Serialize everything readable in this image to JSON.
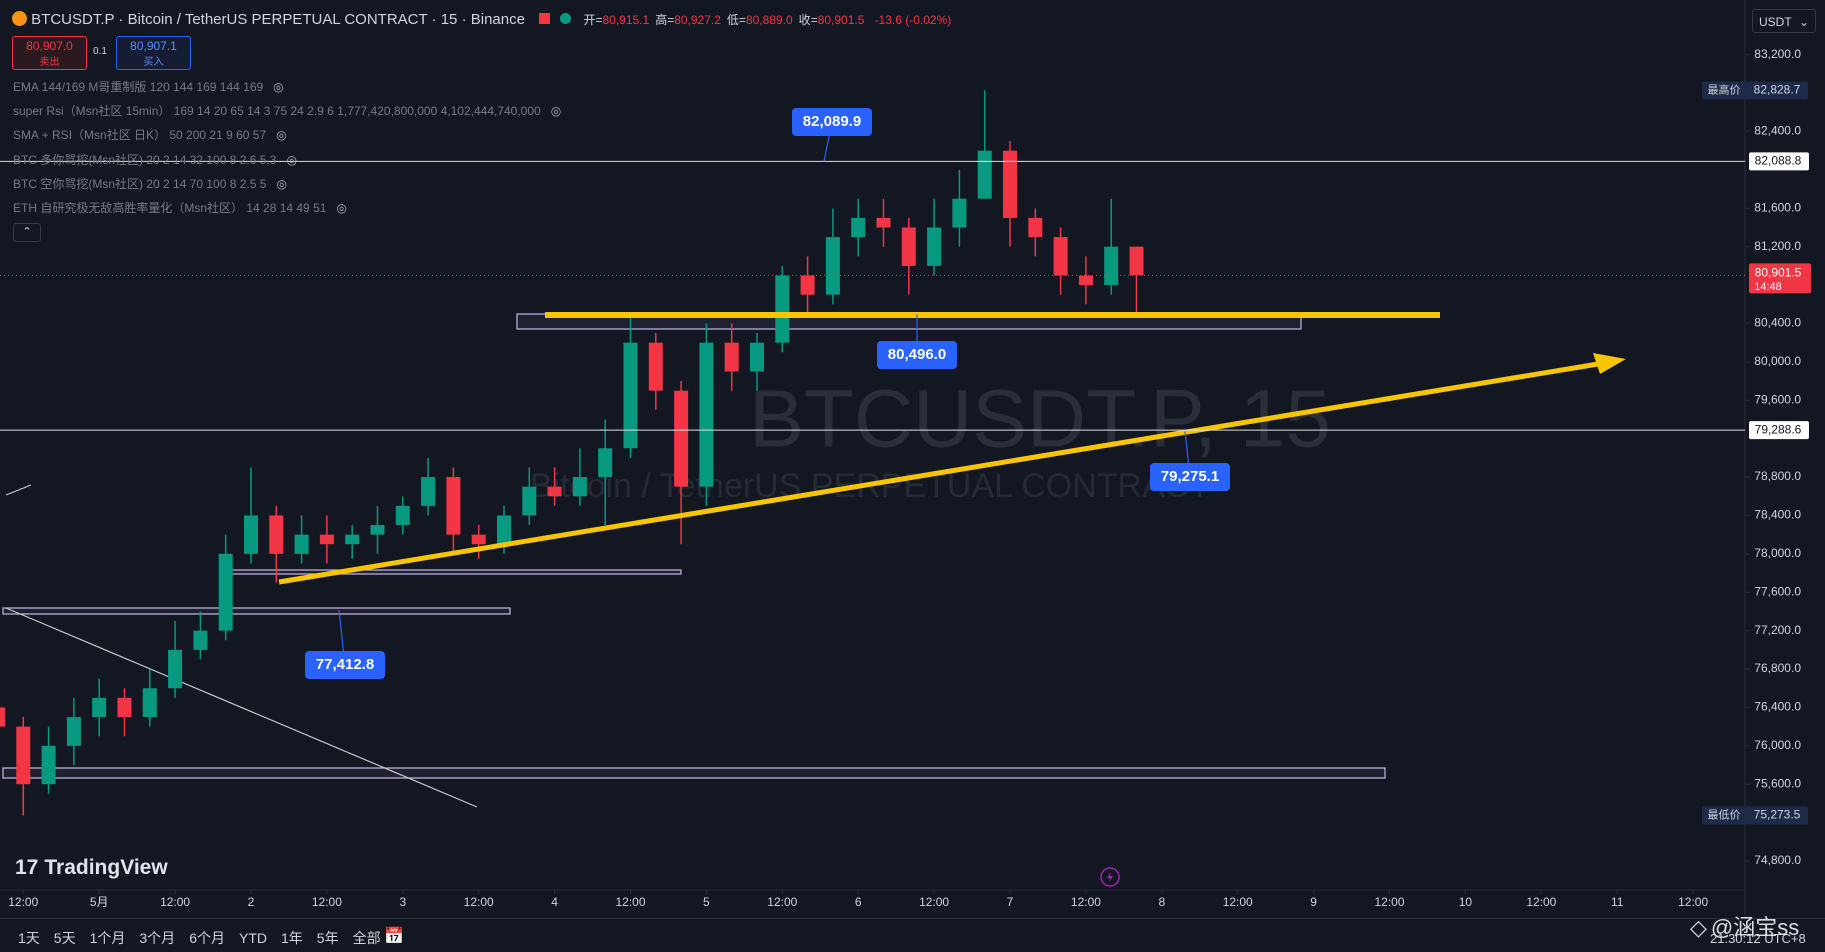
{
  "header": {
    "symbol": "BTCUSDT.P · Bitcoin / TetherUS PERPETUAL CONTRACT · 15 · Binance",
    "ohlc": [
      {
        "label": "开=",
        "value": "80,915.1"
      },
      {
        "label": "高=",
        "value": "80,927.2"
      },
      {
        "label": "低=",
        "value": "80,889.0"
      },
      {
        "label": "收=",
        "value": "80,901.5"
      }
    ],
    "change": "-13.6 (-0.02%)"
  },
  "trade": {
    "sell_price": "80,907.0",
    "sell_label": "卖出",
    "qty": "0.1",
    "buy_price": "80,907.1",
    "buy_label": "买入"
  },
  "indicators": [
    "EMA 144/169 M哥重制版 120 144 169 144 169",
    "super Rsi（Msn社区 15min） 169 14 20 65 14 3 75 24 2.9 6 1,777,420,800,000 4,102,444,740,000",
    "SMA + RSI（Msn社区 日K） 50 200 21 9 60 57",
    "BTC 多你骂挖(Msn社区) 20 2 14 32 100 8 2.6 5.3",
    "BTC 空你骂挖(Msn社区) 20 2 14 70 100 8 2.5 5",
    "ETH 自研究极无敌高胜率量化（Msn社区） 14 28 14 49 51"
  ],
  "currency": "USDT",
  "watermark": {
    "symbol": "BTCUSDT.P, 15",
    "name": "Bitcoin / TetherUS PERPETUAL CONTRACT"
  },
  "chart_data": {
    "type": "candlestick",
    "x": [
      -4,
      0,
      4,
      8,
      12,
      16,
      20,
      24,
      28,
      32,
      36,
      40,
      44,
      48,
      52,
      56,
      60,
      64,
      68,
      72,
      76,
      80,
      84,
      88,
      92,
      96,
      100,
      104,
      108,
      112,
      116,
      120,
      124,
      128,
      132,
      136,
      140,
      144,
      148,
      152,
      156,
      160,
      164,
      168,
      172,
      176
    ],
    "open": [
      76400,
      76200,
      75600,
      76000,
      76300,
      76500,
      76300,
      76600,
      77000,
      77200,
      78000,
      78400,
      78000,
      78200,
      78100,
      78200,
      78300,
      78500,
      78800,
      78200,
      78100,
      78400,
      78700,
      78600,
      78800,
      79100,
      80200,
      79700,
      78700,
      80200,
      79900,
      80200,
      80900,
      80700,
      81300,
      81500,
      81400,
      81000,
      81400,
      81700,
      82200,
      81500,
      81300,
      80900,
      80800,
      81200
    ],
    "high": [
      76600,
      76300,
      76200,
      76500,
      76700,
      76600,
      76800,
      77300,
      77400,
      78200,
      78900,
      78500,
      78400,
      78400,
      78300,
      78500,
      78600,
      79000,
      78900,
      78300,
      78500,
      78900,
      78900,
      79100,
      79400,
      80500,
      80300,
      79800,
      80400,
      80400,
      80300,
      81000,
      81100,
      81600,
      81700,
      81700,
      81500,
      81700,
      82000,
      82828.7,
      82300,
      81600,
      81400,
      81100,
      81700,
      81200
    ],
    "low": [
      76000,
      75273.5,
      75500,
      75800,
      76100,
      76100,
      76200,
      76500,
      76900,
      77100,
      77900,
      77700,
      77900,
      77900,
      77950,
      78000,
      78200,
      78400,
      78000,
      77950,
      78000,
      78300,
      78500,
      78500,
      78300,
      79000,
      79500,
      78100,
      78500,
      79700,
      79700,
      80100,
      80500,
      80600,
      81100,
      81200,
      80700,
      80900,
      81200,
      81700,
      81200,
      81100,
      80700,
      80600,
      80700,
      80500
    ],
    "close": [
      76200,
      75600,
      76000,
      76300,
      76500,
      76300,
      76600,
      77000,
      77200,
      78000,
      78400,
      78000,
      78200,
      78100,
      78200,
      78300,
      78500,
      78800,
      78200,
      78100,
      78400,
      78700,
      78600,
      78800,
      79100,
      80200,
      79700,
      78700,
      80200,
      79900,
      80200,
      80900,
      80700,
      81300,
      81500,
      81400,
      81000,
      81400,
      81700,
      82200,
      81500,
      81300,
      80900,
      80800,
      81200,
      80901.5
    ],
    "up_color": "#089981",
    "down_color": "#f23645",
    "xlim": [
      -3.68,
      272.2
    ],
    "ylim": [
      74498,
      83770
    ],
    "xticks": [
      {
        "value": 0,
        "label": "12:00"
      },
      {
        "value": 12,
        "label": "5月"
      },
      {
        "value": 24,
        "label": "12:00"
      },
      {
        "value": 36,
        "label": "2"
      },
      {
        "value": 48,
        "label": "12:00"
      },
      {
        "value": 60,
        "label": "3"
      },
      {
        "value": 72,
        "label": "12:00"
      },
      {
        "value": 84,
        "label": "4"
      },
      {
        "value": 96,
        "label": "12:00"
      },
      {
        "value": 108,
        "label": "5"
      },
      {
        "value": 120,
        "label": "12:00"
      },
      {
        "value": 132,
        "label": "6"
      },
      {
        "value": 144,
        "label": "12:00"
      },
      {
        "value": 156,
        "label": "7"
      },
      {
        "value": 168,
        "label": "12:00"
      },
      {
        "value": 180,
        "label": "8"
      },
      {
        "value": 192,
        "label": "12:00"
      },
      {
        "value": 204,
        "label": "9"
      },
      {
        "value": 216,
        "label": "12:00"
      },
      {
        "value": 228,
        "label": "10"
      },
      {
        "value": 240,
        "label": "12:00"
      },
      {
        "value": 252,
        "label": "11"
      },
      {
        "value": 264,
        "label": "12:00"
      }
    ],
    "yticks": [
      {
        "value": 83200,
        "label": "83,200.0"
      },
      {
        "value": 82400,
        "label": "82,400.0"
      },
      {
        "value": 81600,
        "label": "81,600.0"
      },
      {
        "value": 81200,
        "label": "81,200.0"
      },
      {
        "value": 80400,
        "label": "80,400.0"
      },
      {
        "value": 80000,
        "label": "80,000.0"
      },
      {
        "value": 79600,
        "label": "79,600.0"
      },
      {
        "value": 78800,
        "label": "78,800.0"
      },
      {
        "value": 78400,
        "label": "78,400.0"
      },
      {
        "value": 78000,
        "label": "78,000.0"
      },
      {
        "value": 77600,
        "label": "77,600.0"
      },
      {
        "value": 77200,
        "label": "77,200.0"
      },
      {
        "value": 76800,
        "label": "76,800.0"
      },
      {
        "value": 76400,
        "label": "76,400.0"
      },
      {
        "value": 76000,
        "label": "76,000.0"
      },
      {
        "value": 75600,
        "label": "75,600.0"
      },
      {
        "value": 74800,
        "label": "74,800.0"
      }
    ],
    "levels": [
      {
        "value": 82088.8,
        "label": "82,088.8"
      },
      {
        "value": 79288.6,
        "label": "79,288.6"
      }
    ],
    "current": {
      "value": 80901.5,
      "label": "80,901.5",
      "countdown": "14:48"
    },
    "high_badge": {
      "name": "最高价",
      "value": 82828.7,
      "label": "82,828.7"
    },
    "low_badge": {
      "name": "最低价",
      "value": 75273.5,
      "label": "75,273.5"
    },
    "callouts": [
      {
        "value": 82089.9,
        "label": "82,089.9"
      },
      {
        "value": 80496.0,
        "label": "80,496.0"
      },
      {
        "value": 79275.1,
        "label": "79,275.1"
      },
      {
        "value": 77412.8,
        "label": "77,412.8"
      }
    ]
  },
  "logo": "TradingView",
  "ranges": [
    "1天",
    "5天",
    "1个月",
    "3个月",
    "6个月",
    "YTD",
    "1年",
    "5年",
    "全部"
  ],
  "clock": "21:30:12 UTC+8",
  "credit": "@涵宝ss"
}
